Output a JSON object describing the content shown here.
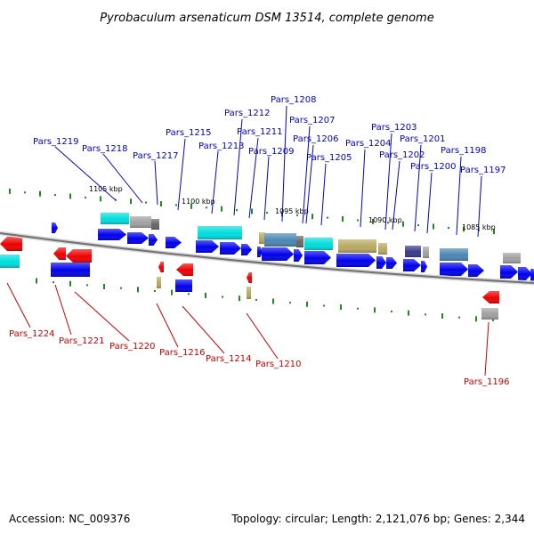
{
  "title": "Pyrobaculum arsenaticum DSM 13514, complete genome",
  "footer": {
    "accession": "Accession: NC_009376",
    "summary": "Topology: circular; Length: 2,121,076 bp; Genes: 2,344"
  },
  "scale_labels": [
    "1105 kbp",
    "1100 kbp",
    "1095 kbp",
    "1090 kbp",
    "1085 kbp"
  ],
  "labels_top": [
    "Pars_1219",
    "Pars_1218",
    "Pars_1217",
    "Pars_1215",
    "Pars_1213",
    "Pars_1212",
    "Pars_1211",
    "Pars_1209",
    "Pars_1208",
    "Pars_1207",
    "Pars_1206",
    "Pars_1205",
    "Pars_1204",
    "Pars_1203",
    "Pars_1202",
    "Pars_1201",
    "Pars_1200",
    "Pars_1198",
    "Pars_1197"
  ],
  "labels_bottom": [
    "Pars_1224",
    "Pars_1221",
    "Pars_1220",
    "Pars_1216",
    "Pars_1214",
    "Pars_1210",
    "Pars_1196"
  ],
  "colors": {
    "label_forward": "#0000cc",
    "label_reverse": "#cc0000",
    "cds": "#0000ee",
    "rev_cds": "#ee0000",
    "cyan": "#00dddd",
    "khaki": "#b8a860",
    "steel": "#4a86b4",
    "gray": "#a0a0a0",
    "navy": "#3a3a8a",
    "tick": "#228822",
    "backbone": "#7a7a7a"
  }
}
